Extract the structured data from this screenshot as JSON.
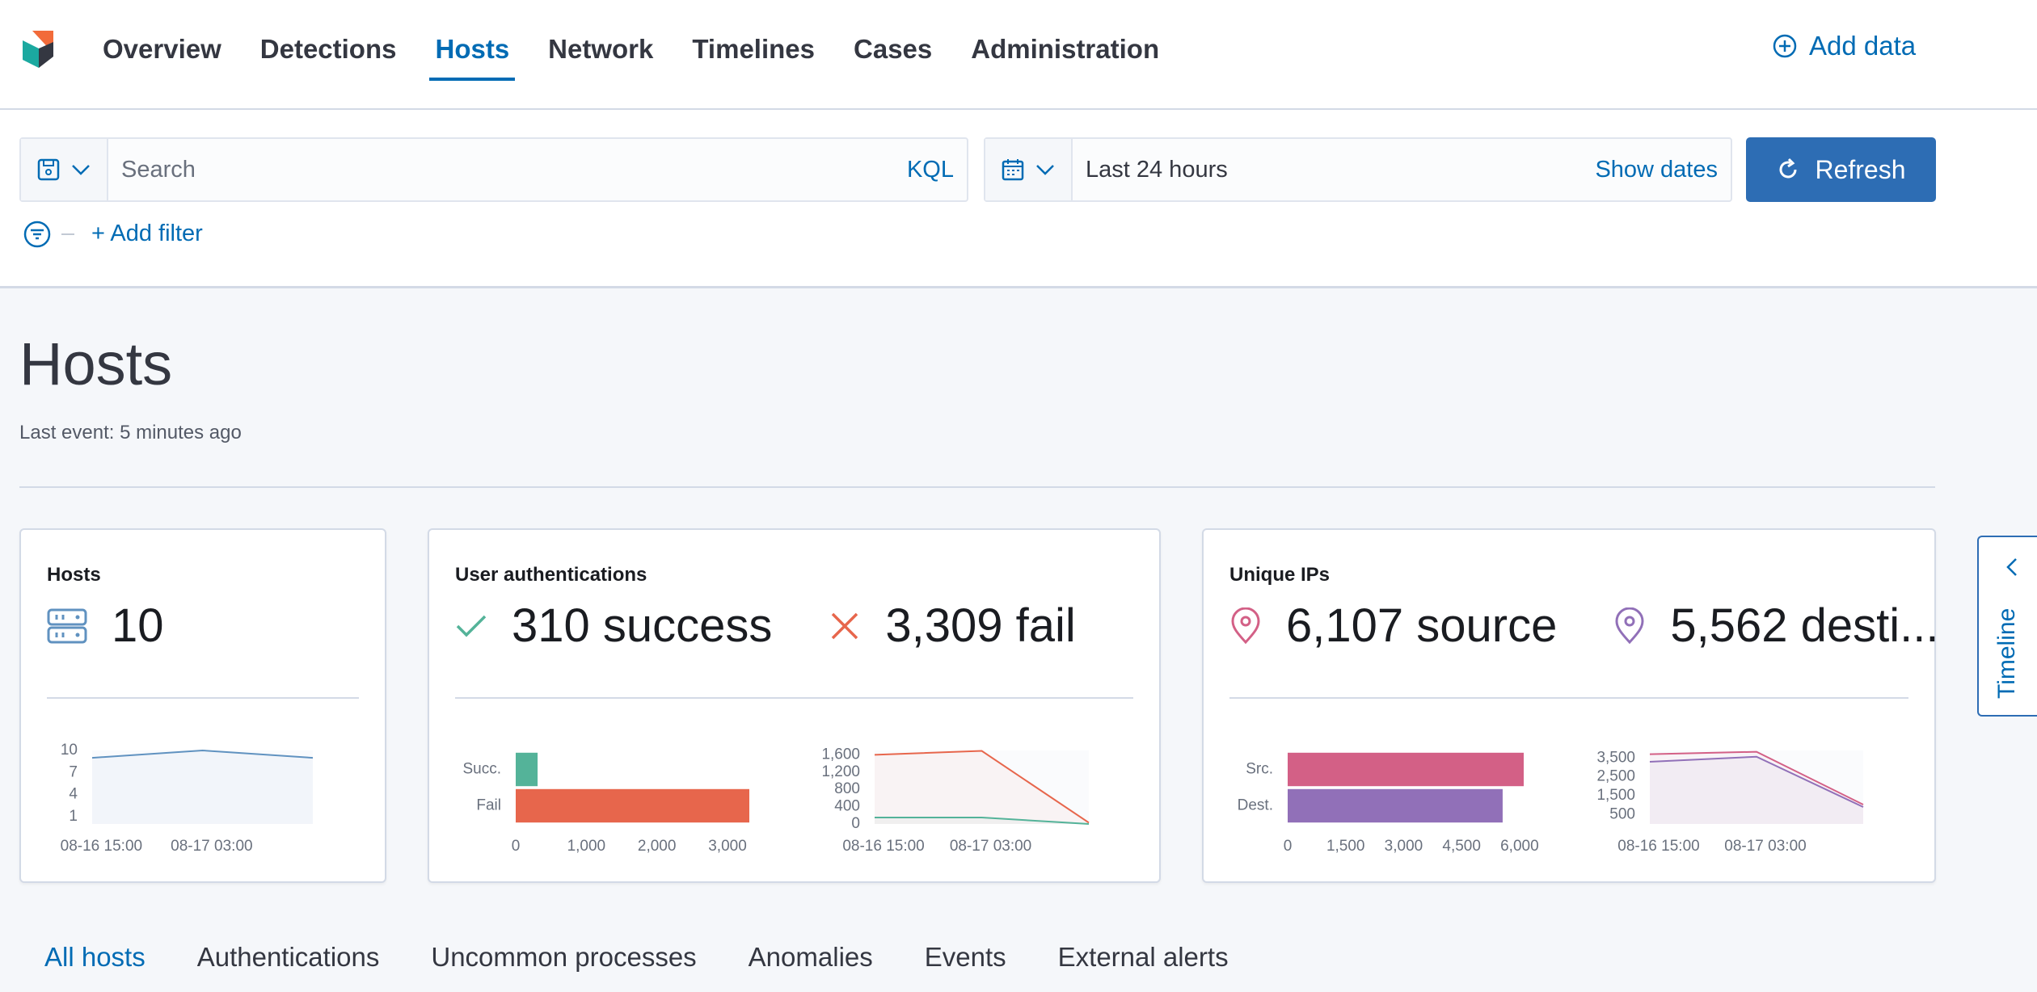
{
  "nav": {
    "items": [
      "Overview",
      "Detections",
      "Hosts",
      "Network",
      "Timelines",
      "Cases",
      "Administration"
    ],
    "active": 2,
    "add_data": "Add data"
  },
  "query": {
    "search_placeholder": "Search",
    "language": "KQL",
    "time_range": "Last 24 hours",
    "show_dates": "Show dates",
    "refresh": "Refresh",
    "add_filter": "+ Add filter"
  },
  "page": {
    "title": "Hosts",
    "last_event": "Last event: 5 minutes ago"
  },
  "cards": [
    {
      "title": "Hosts",
      "stats": [
        "10"
      ],
      "charts": [
        {
          "type": "line",
          "x": [
            "08-16 14:00",
            "08-17 02:00",
            "08-17 14:00"
          ],
          "xlim": [
            "08-16 14:00",
            "08-17 14:00"
          ],
          "xticks": [
            "08-16 15:00",
            "08-17 03:00"
          ],
          "ylim": [
            0,
            10
          ],
          "yticks": [
            1,
            4,
            7,
            10
          ],
          "series": [
            {
              "color": "#6092c0",
              "values": [
                9,
                10,
                9
              ]
            }
          ]
        }
      ]
    },
    {
      "title": "User authentications",
      "stats": [
        "310 success",
        "3,309 fail"
      ],
      "charts": [
        {
          "type": "barh",
          "categories": [
            "Succ.",
            "Fail"
          ],
          "values": [
            310,
            3309
          ],
          "colors": [
            "#54b399",
            "#e7664c"
          ],
          "xlim": [
            0,
            3309
          ],
          "xticks": [
            0,
            {
              "value": 1000,
              "label": "1,000"
            },
            {
              "value": 2000,
              "label": "2,000"
            },
            {
              "value": 3000,
              "label": "3,000"
            }
          ]
        },
        {
          "type": "area",
          "x": [
            "08-16 14:00",
            "08-17 02:00",
            "08-17 14:00"
          ],
          "xlim": [
            "08-16 14:00",
            "08-17 14:00"
          ],
          "xticks": [
            "08-16 15:00",
            "08-17 03:00"
          ],
          "ylim": [
            0,
            1700
          ],
          "yticks": [
            0,
            400,
            800,
            {
              "value": 1200,
              "label": "1,200"
            },
            {
              "value": 1600,
              "label": "1,600"
            }
          ],
          "series": [
            {
              "color": "#e7664c",
              "values": [
                1600,
                1690,
                30
              ]
            },
            {
              "color": "#54b399",
              "values": [
                150,
                150,
                0
              ]
            }
          ]
        }
      ]
    },
    {
      "title": "Unique IPs",
      "stats": [
        "6,107 source",
        "5,562 desti..."
      ],
      "charts": [
        {
          "type": "barh",
          "categories": [
            "Src.",
            "Dest."
          ],
          "values": [
            6107,
            5562
          ],
          "colors": [
            "#d36086",
            "#9170b8"
          ],
          "xlim": [
            0,
            6107
          ],
          "xticks": [
            0,
            {
              "value": 1500,
              "label": "1,500"
            },
            {
              "value": 3000,
              "label": "3,000"
            },
            {
              "value": 4500,
              "label": "4,500"
            },
            {
              "value": 6000,
              "label": "6,000"
            }
          ]
        },
        {
          "type": "area",
          "x": [
            "08-16 14:00",
            "08-17 02:00",
            "08-17 14:00"
          ],
          "xlim": [
            "08-16 14:00",
            "08-17 14:00"
          ],
          "xticks": [
            "08-16 15:00",
            "08-17 03:00"
          ],
          "ylim": [
            0,
            3900
          ],
          "yticks": [
            500,
            {
              "value": 1500,
              "label": "1,500"
            },
            {
              "value": 2500,
              "label": "2,500"
            },
            {
              "value": 3500,
              "label": "3,500"
            }
          ],
          "series": [
            {
              "color": "#d36086",
              "values": [
                3700,
                3830,
                1030
              ]
            },
            {
              "color": "#9170b8",
              "values": [
                3300,
                3570,
                900
              ]
            }
          ]
        }
      ]
    }
  ],
  "tabs": {
    "items": [
      "All hosts",
      "Authentications",
      "Uncommon processes",
      "Anomalies",
      "Events",
      "External alerts"
    ],
    "active": 0
  },
  "timeline": "Timeline"
}
